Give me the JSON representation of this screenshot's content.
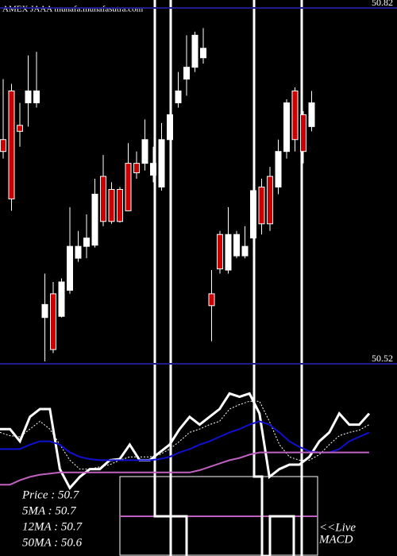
{
  "chart_data": [
    {
      "type": "candlestick",
      "title": "AMEX  JAAA munafa.munafasutra.com",
      "ylim": [
        50.52,
        50.82
      ],
      "yticks": [
        50.52,
        50.82
      ],
      "grid": true,
      "up_color": "#ffffff",
      "down_color": "#cc0000",
      "grid_color": "#1c1c8c",
      "open": [
        50.709,
        50.75,
        50.721,
        50.74,
        50.74,
        50.559,
        50.579,
        50.56,
        50.582,
        50.609,
        50.619,
        50.62,
        50.678,
        50.667,
        50.667,
        50.689,
        50.689,
        50.689,
        50.679,
        50.669,
        50.709,
        50.74,
        50.76,
        50.77,
        50.778,
        50.579,
        50.629,
        50.599,
        50.611,
        50.611,
        50.626,
        50.669,
        50.678,
        50.669,
        50.699,
        50.75,
        50.73,
        50.72
      ],
      "high": [
        50.76,
        50.756,
        50.74,
        50.78,
        50.783,
        50.596,
        50.589,
        50.592,
        50.652,
        50.632,
        50.646,
        50.676,
        50.696,
        50.673,
        50.669,
        50.706,
        50.699,
        50.726,
        50.703,
        50.723,
        50.743,
        50.766,
        50.797,
        50.8,
        50.803,
        50.599,
        50.632,
        50.652,
        50.632,
        50.636,
        50.673,
        50.676,
        50.686,
        50.709,
        50.743,
        50.753,
        50.733,
        50.75
      ],
      "low": [
        50.693,
        50.649,
        50.703,
        50.72,
        50.736,
        50.522,
        50.529,
        50.559,
        50.579,
        50.606,
        50.609,
        50.618,
        50.636,
        50.638,
        50.639,
        50.649,
        50.676,
        50.683,
        50.673,
        50.666,
        50.706,
        50.736,
        50.746,
        50.766,
        50.773,
        50.539,
        50.596,
        50.596,
        50.609,
        50.609,
        50.609,
        50.629,
        50.632,
        50.663,
        50.693,
        50.699,
        50.689,
        50.716
      ],
      "close": [
        50.699,
        50.659,
        50.716,
        50.75,
        50.75,
        50.57,
        50.532,
        50.589,
        50.619,
        50.619,
        50.626,
        50.663,
        50.64,
        50.64,
        50.64,
        50.649,
        50.681,
        50.709,
        50.689,
        50.709,
        50.73,
        50.75,
        50.77,
        50.797,
        50.786,
        50.569,
        50.6,
        50.629,
        50.629,
        50.619,
        50.666,
        50.638,
        50.638,
        50.699,
        50.74,
        50.709,
        50.699,
        50.74
      ]
    },
    {
      "type": "line",
      "ylim": [
        0,
        100
      ],
      "series": [
        {
          "color": "#ffffff",
          "width": 3,
          "dash": "none",
          "values": [
            57,
            57,
            46,
            68,
            75,
            75,
            21,
            4,
            14,
            21,
            21,
            29,
            30,
            43,
            29,
            29,
            36,
            43,
            57,
            68,
            61,
            68,
            75,
            89,
            86,
            89,
            71,
            14,
            21,
            25,
            25,
            32,
            46,
            54,
            71,
            61,
            61,
            71
          ]
        },
        {
          "color": "#ffffff",
          "width": 1,
          "dash": "2,2",
          "values": [
            54,
            51,
            50,
            57,
            64,
            57,
            43,
            29,
            21,
            21,
            23,
            25,
            29,
            32,
            32,
            32,
            34,
            39,
            46,
            54,
            57,
            61,
            64,
            75,
            79,
            82,
            82,
            64,
            43,
            32,
            29,
            29,
            34,
            43,
            51,
            54,
            56,
            61
          ]
        },
        {
          "color": "#1010d0",
          "width": 2,
          "dash": "none",
          "values": [
            39,
            39,
            39,
            43,
            46,
            46,
            43,
            36,
            32,
            30,
            29,
            29,
            29,
            29,
            29,
            29,
            30,
            32,
            36,
            39,
            43,
            46,
            50,
            54,
            57,
            61,
            64,
            61,
            54,
            46,
            41,
            37,
            36,
            36,
            39,
            46,
            50,
            54
          ]
        },
        {
          "color": "#c060c0",
          "width": 2,
          "dash": "none",
          "values": [
            7,
            7,
            11,
            14,
            16,
            17,
            18,
            18,
            18,
            18,
            18,
            18,
            18,
            18,
            18,
            18,
            18,
            18,
            18,
            18,
            20,
            23,
            26,
            29,
            31,
            34,
            36,
            36,
            36,
            36,
            36,
            36,
            36,
            36,
            36,
            36,
            36,
            36
          ]
        }
      ]
    }
  ],
  "info_box": [
    "Price : 50.7",
    "5MA : 50.7",
    "12MA : 50.7",
    "50MA : 50.6"
  ],
  "live_label": "<<Live",
  "macd_label": "MACD"
}
